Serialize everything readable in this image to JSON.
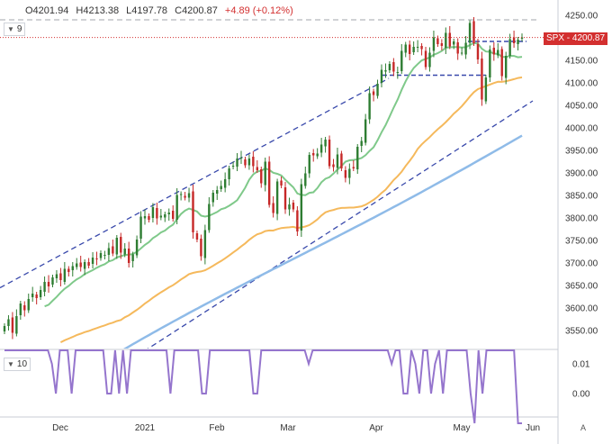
{
  "header": {
    "open": "O4201.94",
    "high": "H4213.38",
    "low": "L4197.78",
    "close": "C4200.87",
    "change": "+4.89 (+0.12%)"
  },
  "price_indicator_label": "9",
  "osc_indicator_label": "10",
  "last_price_tag": {
    "symbol": "SPX",
    "value": "4200.87"
  },
  "time_mode_label": "A",
  "icons": [
    "chevron-down-icon",
    "chevron-down-icon"
  ],
  "colors": {
    "up": "#2e7d32",
    "down": "#c62828",
    "ma_green": "#7fc98a",
    "ma_orange": "#f5b95c",
    "ma_blue": "#8fbbe8",
    "channel": "#3949ab",
    "oscillator": "#9575cd",
    "price_line": "#d32f2f"
  },
  "chart_data": [
    {
      "type": "candlestick",
      "instrument": "SPX",
      "price_axis": {
        "ticks": [
          3550,
          3600,
          3650,
          3700,
          3750,
          3800,
          3850,
          3900,
          3950,
          4000,
          4050,
          4100,
          4150,
          4200,
          4250
        ]
      },
      "x_axis": {
        "ticks": [
          "Dec",
          "2021",
          "Feb",
          "Mar",
          "Apr",
          "May",
          "Jun"
        ]
      },
      "last_price": 4200.87,
      "close": [
        3560,
        3575,
        3545,
        3582,
        3610,
        3595,
        3620,
        3632,
        3622,
        3640,
        3658,
        3648,
        3668,
        3675,
        3662,
        3687,
        3680,
        3693,
        3699,
        3691,
        3702,
        3694,
        3712,
        3709,
        3722,
        3718,
        3733,
        3721,
        3756,
        3723,
        3732,
        3700,
        3719,
        3752,
        3803,
        3804,
        3796,
        3824,
        3799,
        3805,
        3808,
        3812,
        3798,
        3851,
        3853,
        3845,
        3855,
        3768,
        3752,
        3715,
        3773,
        3831,
        3856,
        3862,
        3871,
        3886,
        3910,
        3916,
        3932,
        3934,
        3917,
        3932,
        3915,
        3906,
        3877,
        3925,
        3829,
        3811,
        3881,
        3872,
        3819,
        3830,
        3819,
        3770,
        3875,
        3899,
        3940,
        3939,
        3943,
        3963,
        3974,
        3915,
        3913,
        3941,
        3910,
        3889,
        3909,
        3910,
        3958,
        3971,
        4019,
        4077,
        4073,
        4098,
        4129,
        4128,
        4142,
        4125,
        4124,
        4171,
        4185,
        4164,
        4180,
        4180,
        4175,
        4135,
        4167,
        4201,
        4186,
        4182,
        4211,
        4181,
        4192,
        4165,
        4167,
        4189,
        4233,
        4188,
        4152,
        4063,
        4112,
        4174,
        4163,
        4173,
        4115,
        4160,
        4197,
        4188,
        4196,
        4200.87
      ],
      "overlay_lines": [
        {
          "name": "",
          "color": "#7fc98a",
          "from": 3490,
          "to": 4165
        },
        {
          "name": "",
          "color": "#f5b95c",
          "from": 3430,
          "to": 4105
        },
        {
          "name": "",
          "color": "#8fbbe8",
          "from": 3340,
          "to": 3985
        }
      ],
      "trend_lines": [
        {
          "style": "dashed",
          "from": 3645,
          "to": 4110
        },
        {
          "style": "dashed",
          "from": 3520,
          "to": 4060
        },
        {
          "style": "dashed",
          "level": 4240
        },
        {
          "style": "dashed",
          "level": 4192
        },
        {
          "style": "dashed",
          "level": 4117
        }
      ]
    },
    {
      "type": "line",
      "name": "",
      "y_axis": {
        "ticks": [
          "0.01",
          "0.00"
        ]
      },
      "values": [
        0.02,
        0.02,
        0.02,
        0.02,
        0.02,
        0.02,
        0.02,
        0.02,
        0.02,
        0.02,
        0.02,
        0.02,
        0.01,
        0.0,
        0.02,
        0.02,
        0.02,
        0.0,
        0.02,
        0.02,
        0.02,
        0.02,
        0.02,
        0.02,
        0.02,
        0.02,
        0.0,
        0.0,
        0.02,
        0.0,
        0.02,
        0.0,
        0.02,
        0.02,
        0.02,
        0.02,
        0.02,
        0.02,
        0.02,
        0.02,
        0.02,
        0.02,
        0.0,
        0.02,
        0.02,
        0.02,
        0.02,
        0.02,
        0.02,
        0.02,
        0.0,
        0.0,
        0.02,
        0.02,
        0.02,
        0.02,
        0.02,
        0.02,
        0.02,
        0.02,
        0.02,
        0.02,
        0.02,
        0.0,
        0.0,
        0.02,
        0.02,
        0.02,
        0.02,
        0.02,
        0.02,
        0.02,
        0.02,
        0.02,
        0.02,
        0.02,
        0.02,
        0.01,
        0.02,
        0.02,
        0.02,
        0.02,
        0.02,
        0.02,
        0.02,
        0.02,
        0.02,
        0.02,
        0.02,
        0.02,
        0.02,
        0.02,
        0.02,
        0.02,
        0.02,
        0.02,
        0.02,
        0.02,
        0.01,
        0.02,
        0.02,
        0.0,
        0.0,
        0.02,
        0.01,
        0.0,
        0.02,
        0.02,
        0.0,
        0.01,
        0.02,
        0.0,
        0.02,
        0.02,
        0.02,
        0.02,
        0.02,
        0.02,
        0.0,
        -0.01,
        0.02,
        0.0,
        0.02,
        0.02,
        0.02,
        0.02,
        0.02,
        0.02,
        0.02,
        0.02,
        -0.01,
        -0.01
      ]
    }
  ]
}
